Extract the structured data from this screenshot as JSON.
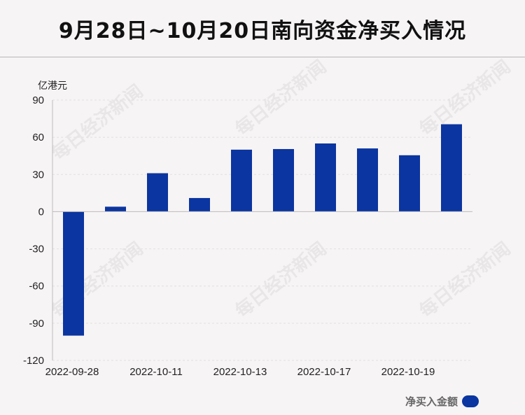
{
  "header": {
    "title": "9月28日~10月20日南向资金净买入情况"
  },
  "watermark": "每日经济新闻",
  "chart_data": {
    "type": "bar",
    "title": "9月28日~10月20日南向资金净买入情况",
    "ylabel": "亿港元",
    "xlabel": "",
    "ylim": [
      -120,
      90
    ],
    "yticks": [
      90,
      60,
      30,
      0,
      -30,
      -60,
      -90,
      -120
    ],
    "categories": [
      "2022-09-28",
      "",
      "2022-10-11",
      "",
      "2022-10-13",
      "",
      "2022-10-17",
      "",
      "2022-10-19",
      ""
    ],
    "series": [
      {
        "name": "净买入金额",
        "color": "#0b35a0",
        "values": [
          -100,
          4,
          31,
          11,
          50,
          50.5,
          55,
          51,
          45.5,
          70.5
        ]
      }
    ],
    "grid": true,
    "legend": "bottom-right"
  }
}
